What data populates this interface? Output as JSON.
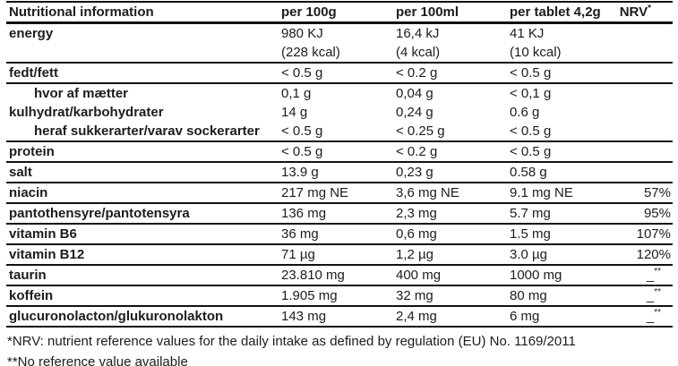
{
  "table": {
    "columns": [
      "Nutritional information",
      "per 100g",
      "per 100ml",
      "per tablet 4,2g",
      "NRV*"
    ],
    "rows": [
      {
        "label": "energy",
        "indent": false,
        "per_100g": [
          "980 KJ",
          "(228 kcal)"
        ],
        "per_100ml": [
          "16,4 kJ",
          "(4 kcal)"
        ],
        "per_tablet": [
          "41 KJ",
          "(10 kcal)"
        ],
        "nrv": "",
        "rule": true
      },
      {
        "label": "fedt/fett",
        "indent": false,
        "per_100g": [
          "< 0.5 g"
        ],
        "per_100ml": [
          "< 0.2 g"
        ],
        "per_tablet": [
          "< 0.5 g"
        ],
        "nrv": "",
        "rule": true
      },
      {
        "label": "hvor af mætter",
        "indent": true,
        "per_100g": [
          "0,1 g"
        ],
        "per_100ml": [
          "0,04 g"
        ],
        "per_tablet": [
          "< 0,1 g"
        ],
        "nrv": "",
        "rule": false
      },
      {
        "label": "kulhydrat/karbohydrater",
        "indent": false,
        "per_100g": [
          "14 g"
        ],
        "per_100ml": [
          "0,24 g"
        ],
        "per_tablet": [
          "0.6 g"
        ],
        "nrv": "",
        "rule": false
      },
      {
        "label": "heraf sukkerarter/varav sockerarter",
        "indent": true,
        "per_100g": [
          "< 0.5 g"
        ],
        "per_100ml": [
          "< 0.25 g"
        ],
        "per_tablet": [
          "< 0.5 g"
        ],
        "nrv": "",
        "rule": true
      },
      {
        "label": "protein",
        "indent": false,
        "per_100g": [
          "< 0.5 g"
        ],
        "per_100ml": [
          "< 0.2 g"
        ],
        "per_tablet": [
          "< 0.5 g"
        ],
        "nrv": "",
        "rule": true
      },
      {
        "label": "salt",
        "indent": false,
        "per_100g": [
          "13.9 g"
        ],
        "per_100ml": [
          "0,23 g"
        ],
        "per_tablet": [
          "0.58 g"
        ],
        "nrv": "",
        "rule": true
      },
      {
        "label": "niacin",
        "indent": false,
        "per_100g": [
          "217 mg NE"
        ],
        "per_100ml": [
          "3,6 mg NE"
        ],
        "per_tablet": [
          "9.1 mg NE"
        ],
        "nrv": "57%",
        "rule": true
      },
      {
        "label": "pantothensyre/pantotensyra",
        "indent": false,
        "per_100g": [
          "136 mg"
        ],
        "per_100ml": [
          "2,3 mg"
        ],
        "per_tablet": [
          "5.7 mg"
        ],
        "nrv": "95%",
        "rule": true
      },
      {
        "label": "vitamin B6",
        "indent": false,
        "per_100g": [
          "36 mg"
        ],
        "per_100ml": [
          "0,6 mg"
        ],
        "per_tablet": [
          "1.5 mg"
        ],
        "nrv": "107%",
        "rule": true
      },
      {
        "label": "vitamin B12",
        "indent": false,
        "per_100g": [
          "71 µg"
        ],
        "per_100ml": [
          "1,2 µg"
        ],
        "per_tablet": [
          "3.0 µg"
        ],
        "nrv": "120%",
        "rule": true
      },
      {
        "label": "taurin",
        "indent": false,
        "per_100g": [
          "23.810 mg"
        ],
        "per_100ml": [
          "400 mg"
        ],
        "per_tablet": [
          "1000 mg"
        ],
        "nrv": "_**",
        "rule": true
      },
      {
        "label": "koffein",
        "indent": false,
        "per_100g": [
          "1.905 mg"
        ],
        "per_100ml": [
          "32 mg"
        ],
        "per_tablet": [
          "80 mg"
        ],
        "nrv": "_**",
        "rule": true
      },
      {
        "label": "glucuronolacton/glukuronolakton",
        "indent": false,
        "per_100g": [
          "143 mg"
        ],
        "per_100ml": [
          "2,4 mg"
        ],
        "per_tablet": [
          "6 mg"
        ],
        "nrv": "_**",
        "rule": true
      }
    ]
  },
  "footnotes": [
    "*NRV: nutrient reference values for the daily intake as defined by regulation (EU) No. 1169/2011",
    "**No reference value available"
  ]
}
